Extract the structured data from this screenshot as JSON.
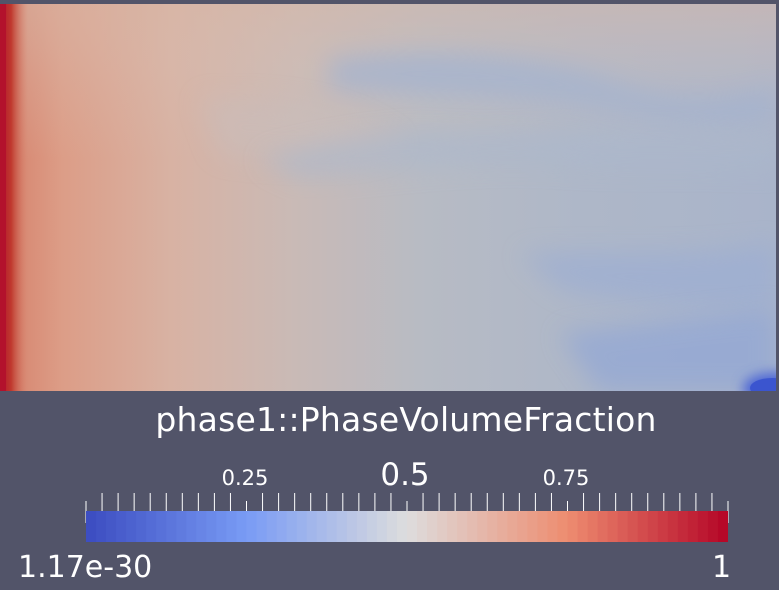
{
  "legend": {
    "title": "phase1::PhaseVolumeFraction",
    "range_min": "1.17e-30",
    "range_max": "1",
    "tick_labels": [
      "0.25",
      "0.5",
      "0.75"
    ],
    "colormap": "cool-to-warm",
    "color_low": "#3b4cc0",
    "color_mid": "#dddddd",
    "color_high": "#b40426"
  },
  "colors": {
    "background": "#525469",
    "text": "#ffffff"
  }
}
